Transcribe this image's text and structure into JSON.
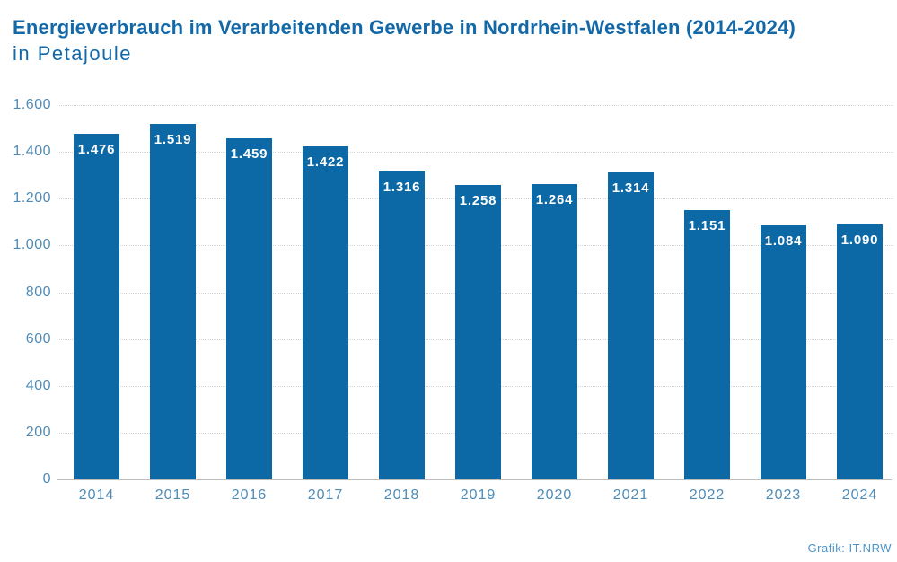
{
  "header": {
    "title": "Energieverbrauch im Verarbeitenden Gewerbe in Nordrhein-Westfalen (2014-2024)",
    "subtitle": "in Petajoule"
  },
  "credit": "Grafik: IT.NRW",
  "colors": {
    "title": "#1368a8",
    "bar": "#0d69a5",
    "bar_label": "#ffffff",
    "axis_label": "#4f8bb5",
    "gridline": "#d6d6d6",
    "axis_line": "#bcbcbc",
    "credit": "#4a94c9",
    "background": "#ffffff"
  },
  "chart_data": {
    "type": "bar",
    "title": "Energieverbrauch im Verarbeitenden Gewerbe in Nordrhein-Westfalen (2014-2024)",
    "subtitle": "in Petajoule",
    "unit": "Petajoule",
    "categories": [
      "2014",
      "2015",
      "2016",
      "2017",
      "2018",
      "2019",
      "2020",
      "2021",
      "2022",
      "2023",
      "2024"
    ],
    "values": [
      1476,
      1519,
      1459,
      1422,
      1316,
      1258,
      1264,
      1314,
      1151,
      1084,
      1090
    ],
    "value_labels": [
      "1.476",
      "1.519",
      "1.459",
      "1.422",
      "1.316",
      "1.258",
      "1.264",
      "1.314",
      "1.151",
      "1.084",
      "1.090"
    ],
    "xlabel": "",
    "ylabel": "",
    "ylim": [
      0,
      1600
    ],
    "ytick_interval": 200,
    "yticks": [
      0,
      200,
      400,
      600,
      800,
      1000,
      1200,
      1400,
      1600
    ],
    "ytick_labels": [
      "0",
      "200",
      "400",
      "600",
      "800",
      "1.000",
      "1.200",
      "1.400",
      "1.600"
    ],
    "grid": true,
    "gridline_style": "dotted",
    "legend": false,
    "bar_label_position": "inside-top"
  }
}
